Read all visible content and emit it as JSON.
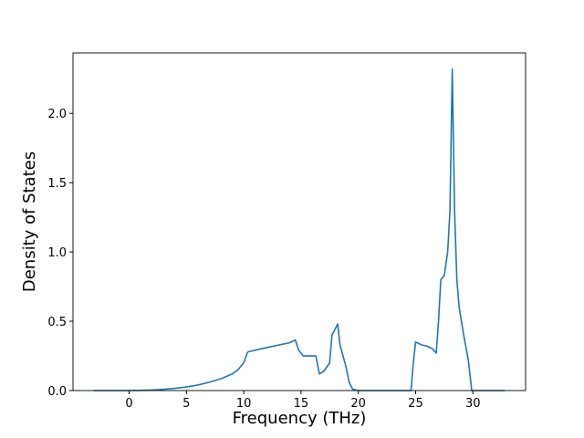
{
  "chart_data": {
    "type": "line",
    "xlabel": "Frequency (THz)",
    "ylabel": "Density of States",
    "x": [
      -3.1,
      -1,
      0,
      1,
      2,
      3,
      4,
      5,
      6,
      7,
      8,
      9,
      9.5,
      10,
      10.3,
      10.4,
      12,
      14,
      14.5,
      14.8,
      15.2,
      16,
      16.3,
      16.6,
      17,
      17.5,
      17.7,
      18.2,
      18.4,
      18.9,
      19.2,
      19.5,
      20,
      24.6,
      24.8,
      25,
      25.5,
      26,
      26.5,
      26.8,
      27,
      27.2,
      27.5,
      27.8,
      28,
      28.2,
      28.4,
      28.6,
      28.8,
      29.2,
      29.6,
      29.9,
      32.8
    ],
    "series": [
      {
        "color": "#1f77b4",
        "values": [
          0,
          0,
          0,
          0.001,
          0.004,
          0.009,
          0.016,
          0.026,
          0.04,
          0.06,
          0.085,
          0.12,
          0.15,
          0.2,
          0.27,
          0.28,
          0.31,
          0.345,
          0.365,
          0.29,
          0.25,
          0.25,
          0.25,
          0.12,
          0.14,
          0.2,
          0.4,
          0.48,
          0.33,
          0.18,
          0.06,
          0.01,
          0,
          0,
          0.2,
          0.35,
          0.33,
          0.32,
          0.3,
          0.27,
          0.5,
          0.8,
          0.83,
          1.0,
          1.3,
          2.32,
          1.3,
          0.8,
          0.6,
          0.4,
          0.22,
          0,
          0
        ]
      }
    ],
    "xlim": [
      -4.9,
      34.6
    ],
    "ylim": [
      0,
      2.436
    ],
    "xticks": [
      0,
      5,
      10,
      15,
      20,
      25,
      30
    ],
    "yticks": [
      {
        "value": 0,
        "label": "0.0"
      },
      {
        "value": 0.5,
        "label": "0.5"
      },
      {
        "value": 1,
        "label": "1.0"
      },
      {
        "value": 1.5,
        "label": "1.5"
      },
      {
        "value": 2,
        "label": "2.0"
      }
    ]
  }
}
